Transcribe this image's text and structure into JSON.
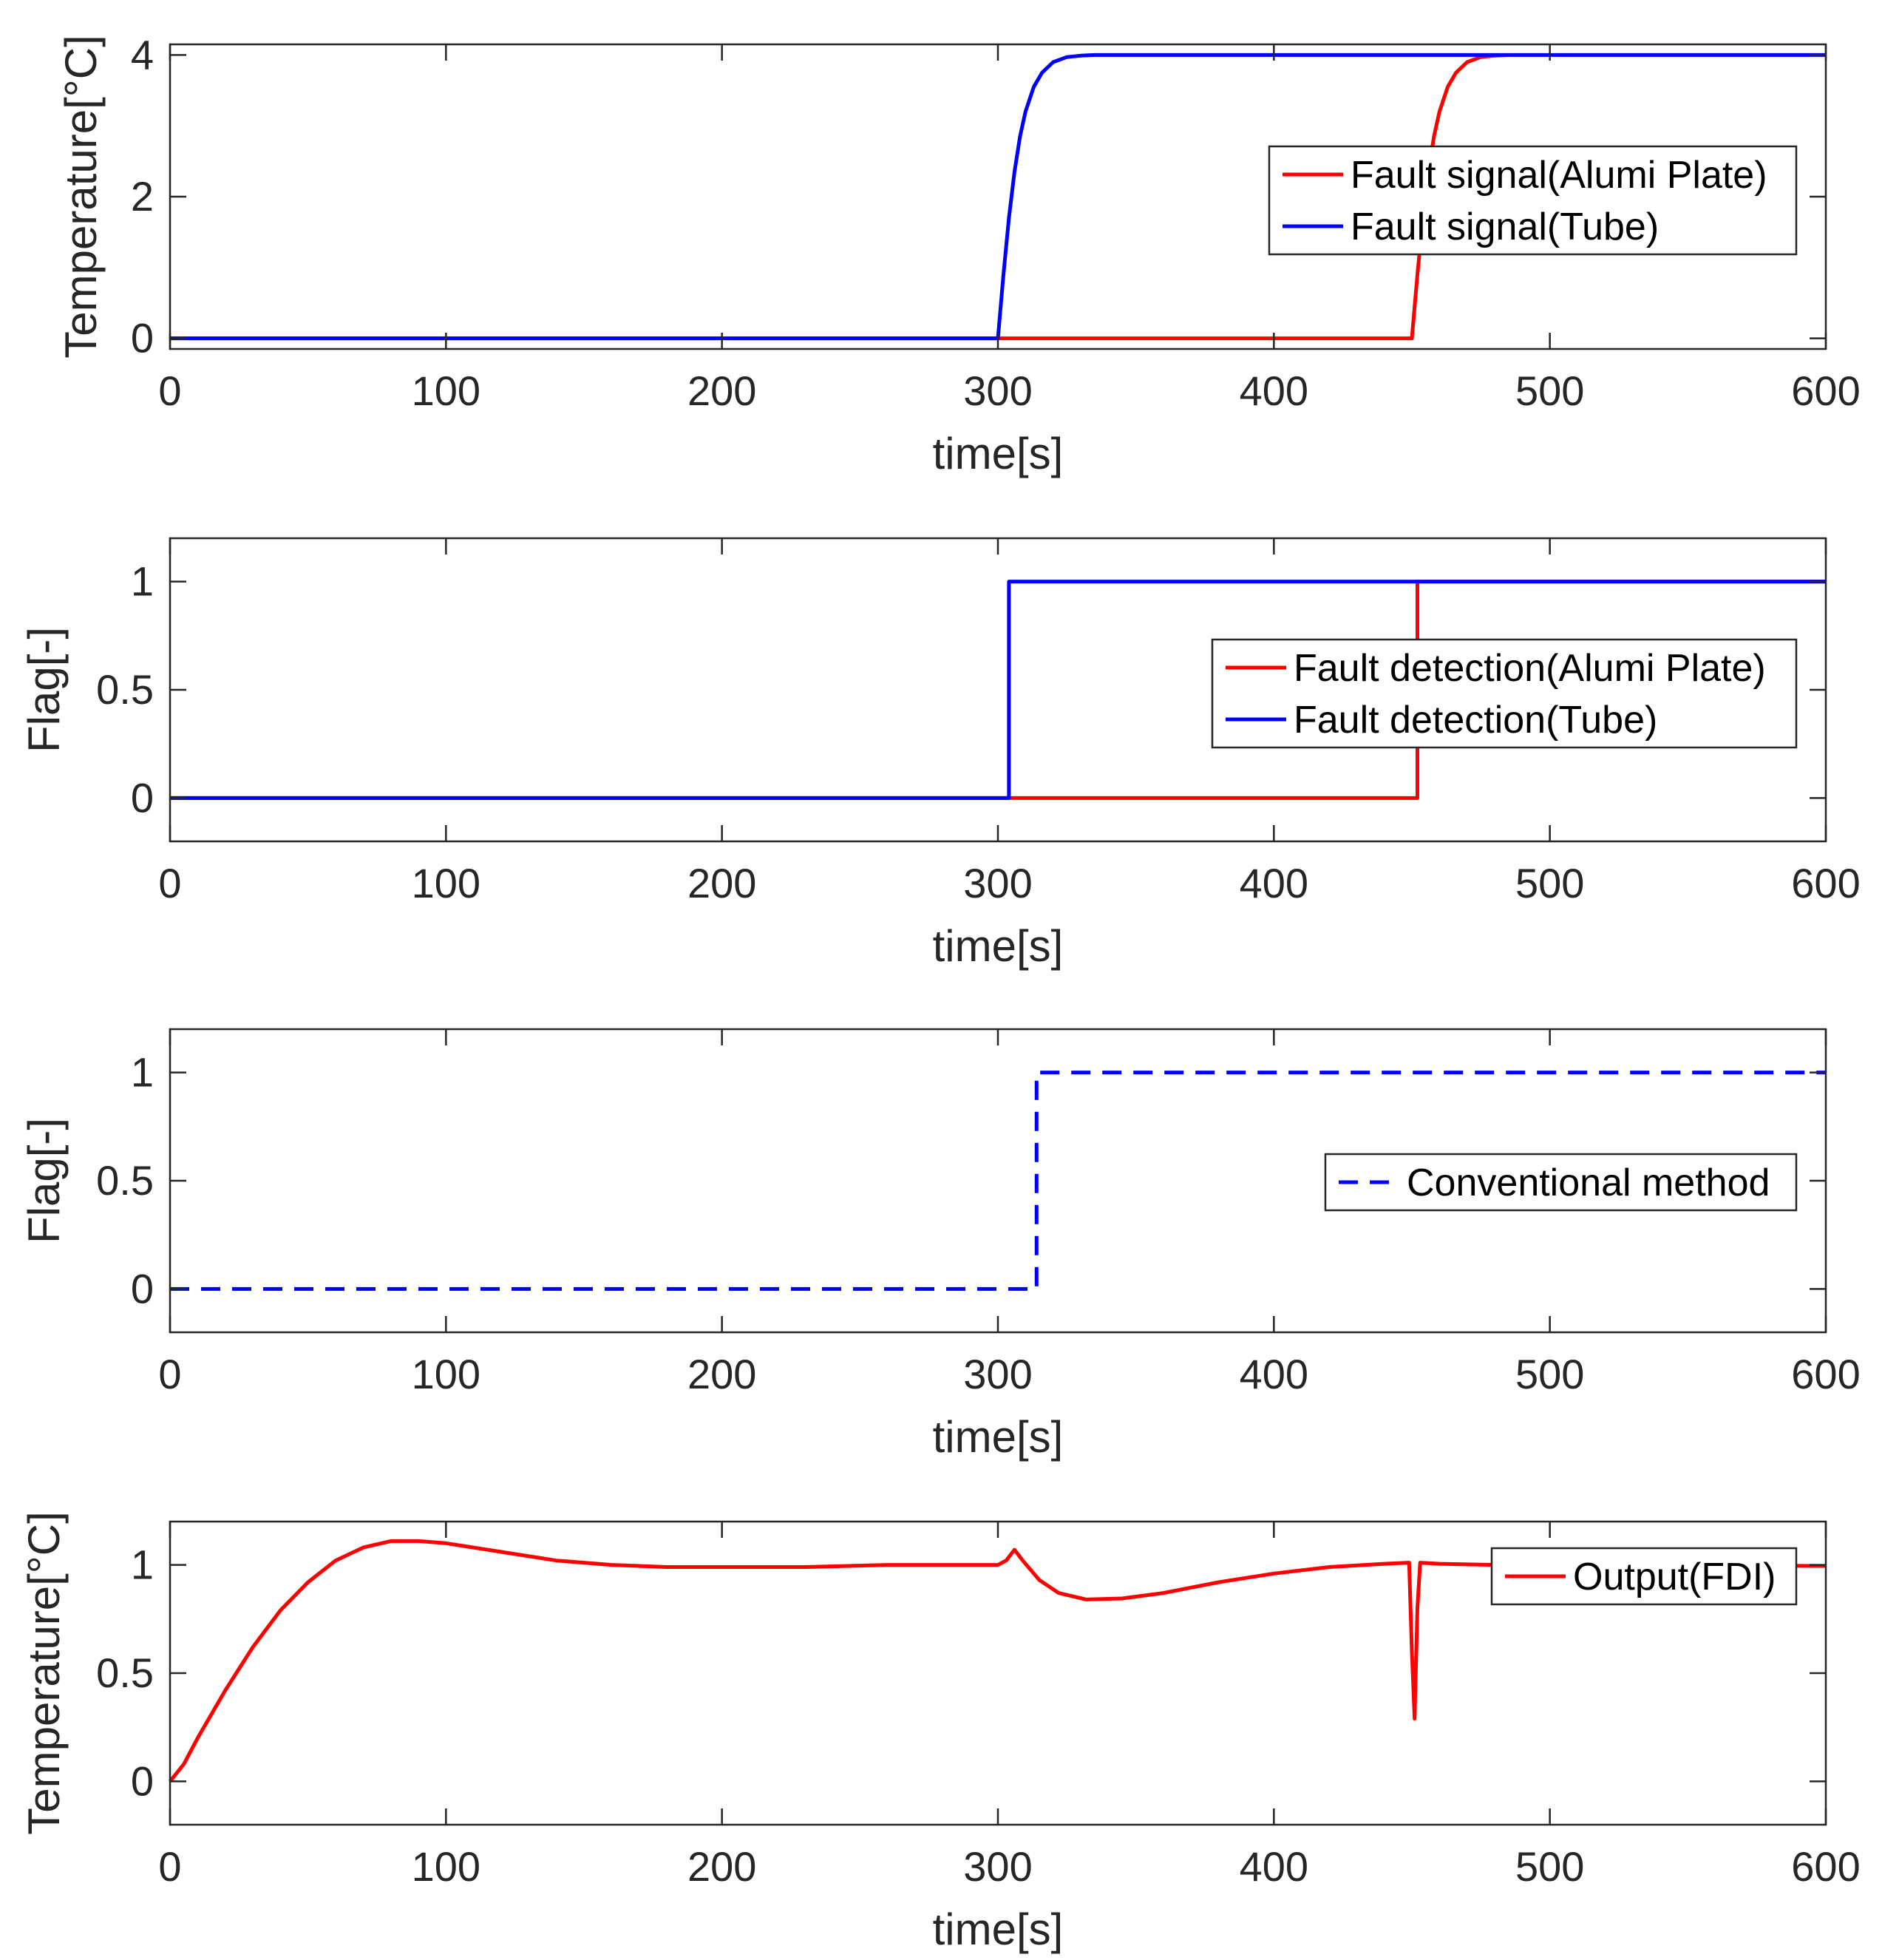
{
  "chart_data": [
    {
      "type": "line",
      "xlabel": "time[s]",
      "ylabel": "Temperature[°C]",
      "xlim": [
        0,
        600
      ],
      "ylim": [
        -0.15,
        4.15
      ],
      "xticks": [
        0,
        100,
        200,
        300,
        400,
        500,
        600
      ],
      "yticks": [
        0,
        2,
        4
      ],
      "legend_position": "center-right",
      "series": [
        {
          "name": "Fault signal(Alumi Plate)",
          "color": "#ff0000",
          "dash": "solid",
          "points": [
            [
              0,
              0
            ],
            [
              450,
              0
            ],
            [
              452,
              0.9
            ],
            [
              454,
              1.7
            ],
            [
              456,
              2.35
            ],
            [
              458,
              2.85
            ],
            [
              460,
              3.2
            ],
            [
              463,
              3.55
            ],
            [
              466,
              3.75
            ],
            [
              470,
              3.9
            ],
            [
              475,
              3.97
            ],
            [
              480,
              3.99
            ],
            [
              485,
              4.0
            ]
          ]
        },
        {
          "name": "Fault signal(Tube)",
          "color": "#0000ff",
          "dash": "solid",
          "points": [
            [
              0,
              0
            ],
            [
              300,
              0
            ],
            [
              302,
              0.9
            ],
            [
              304,
              1.7
            ],
            [
              306,
              2.35
            ],
            [
              308,
              2.85
            ],
            [
              310,
              3.2
            ],
            [
              313,
              3.55
            ],
            [
              316,
              3.75
            ],
            [
              320,
              3.9
            ],
            [
              325,
              3.97
            ],
            [
              330,
              3.99
            ],
            [
              335,
              4.0
            ],
            [
              600,
              4.0
            ]
          ]
        }
      ]
    },
    {
      "type": "line",
      "xlabel": "time[s]",
      "ylabel": "Flag[-]",
      "xlim": [
        0,
        600
      ],
      "ylim": [
        -0.2,
        1.2
      ],
      "xticks": [
        0,
        100,
        200,
        300,
        400,
        500,
        600
      ],
      "yticks": [
        0,
        0.5,
        1
      ],
      "legend_position": "center-right",
      "series": [
        {
          "name": "Fault detection(Alumi Plate)",
          "color": "#ff0000",
          "dash": "solid",
          "points": [
            [
              0,
              0
            ],
            [
              452,
              0
            ],
            [
              452,
              1
            ],
            [
              600,
              1
            ]
          ]
        },
        {
          "name": "Fault detection(Tube)",
          "color": "#0000ff",
          "dash": "solid",
          "points": [
            [
              0,
              0
            ],
            [
              304,
              0
            ],
            [
              304,
              1
            ],
            [
              600,
              1
            ]
          ]
        }
      ]
    },
    {
      "type": "line",
      "xlabel": "time[s]",
      "ylabel": "Flag[-]",
      "xlim": [
        0,
        600
      ],
      "ylim": [
        -0.2,
        1.2
      ],
      "xticks": [
        0,
        100,
        200,
        300,
        400,
        500,
        600
      ],
      "yticks": [
        0,
        0.5,
        1
      ],
      "legend_position": "center-right",
      "series": [
        {
          "name": "Conventional method",
          "color": "#0000ff",
          "dash": "dashed",
          "points": [
            [
              0,
              0
            ],
            [
              314,
              0
            ],
            [
              314,
              1
            ],
            [
              600,
              1
            ]
          ]
        }
      ]
    },
    {
      "type": "line",
      "xlabel": "time[s]",
      "ylabel": "Temperature[°C]",
      "xlim": [
        0,
        600
      ],
      "ylim": [
        -0.2,
        1.2
      ],
      "xticks": [
        0,
        100,
        200,
        300,
        400,
        500,
        600
      ],
      "yticks": [
        0,
        0.5,
        1
      ],
      "legend_position": "top-right",
      "series": [
        {
          "name": "Output(FDI)",
          "color": "#ff0000",
          "dash": "solid",
          "points": [
            [
              0,
              0
            ],
            [
              5,
              0.08
            ],
            [
              10,
              0.2
            ],
            [
              20,
              0.42
            ],
            [
              30,
              0.62
            ],
            [
              40,
              0.79
            ],
            [
              50,
              0.92
            ],
            [
              60,
              1.02
            ],
            [
              70,
              1.08
            ],
            [
              80,
              1.11
            ],
            [
              90,
              1.11
            ],
            [
              100,
              1.1
            ],
            [
              120,
              1.06
            ],
            [
              140,
              1.02
            ],
            [
              160,
              1.0
            ],
            [
              180,
              0.99
            ],
            [
              200,
              0.99
            ],
            [
              230,
              0.99
            ],
            [
              260,
              1.0
            ],
            [
              300,
              1.0
            ],
            [
              303,
              1.02
            ],
            [
              306,
              1.07
            ],
            [
              309,
              1.02
            ],
            [
              315,
              0.93
            ],
            [
              322,
              0.87
            ],
            [
              332,
              0.84
            ],
            [
              345,
              0.845
            ],
            [
              360,
              0.87
            ],
            [
              380,
              0.92
            ],
            [
              400,
              0.96
            ],
            [
              420,
              0.99
            ],
            [
              440,
              1.005
            ],
            [
              449,
              1.01
            ],
            [
              450,
              0.6
            ],
            [
              451,
              0.29
            ],
            [
              452,
              0.8
            ],
            [
              453,
              1.01
            ],
            [
              460,
              1.005
            ],
            [
              480,
              1.0
            ],
            [
              500,
              1.0
            ],
            [
              600,
              0.995
            ]
          ]
        }
      ]
    }
  ]
}
